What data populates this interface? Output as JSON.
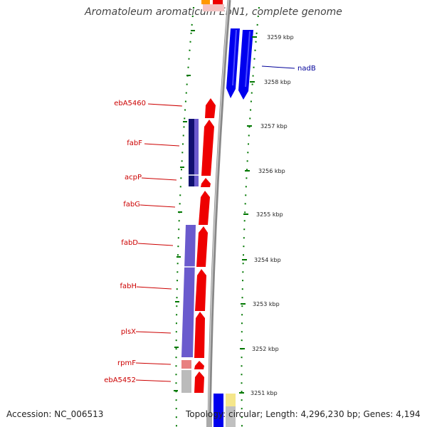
{
  "header": {
    "title": "Aromatoleum aromaticum EbN1, complete genome"
  },
  "footer": {
    "accession": "Accession: NC_006513",
    "topology": "Topology: circular; Length: 4,296,230 bp; Genes: 4,194"
  },
  "scale": {
    "unit": "kbp",
    "ticks": [
      {
        "value": 3259,
        "label": "3259 kbp"
      },
      {
        "value": 3258,
        "label": "3258 kbp"
      },
      {
        "value": 3257,
        "label": "3257 kbp"
      },
      {
        "value": 3256,
        "label": "3256 kbp"
      },
      {
        "value": 3255,
        "label": "3255 kbp"
      },
      {
        "value": 3254,
        "label": "3254 kbp"
      },
      {
        "value": 3253,
        "label": "3253 kbp"
      },
      {
        "value": 3252,
        "label": "3252 kbp"
      },
      {
        "value": 3251,
        "label": "3251 kbp"
      }
    ]
  },
  "gene_labels": [
    {
      "name": "ebA5460",
      "color": "#cc0000"
    },
    {
      "name": "fabF",
      "color": "#cc0000"
    },
    {
      "name": "acpP",
      "color": "#cc0000"
    },
    {
      "name": "fabG",
      "color": "#cc0000"
    },
    {
      "name": "fabD",
      "color": "#cc0000"
    },
    {
      "name": "fabH",
      "color": "#cc0000"
    },
    {
      "name": "plsX",
      "color": "#cc0000"
    },
    {
      "name": "rpmF",
      "color": "#cc0000"
    },
    {
      "name": "ebA5452",
      "color": "#cc0000"
    },
    {
      "name": "nadB",
      "color": "#000099"
    }
  ],
  "colors": {
    "forward_strand": "#ee0000",
    "reverse_strand": "#0000ee",
    "backbone": "#888888",
    "tick_marks": "#007700",
    "cog_purple": "#6a5acd",
    "cog_navy": "#101070"
  }
}
